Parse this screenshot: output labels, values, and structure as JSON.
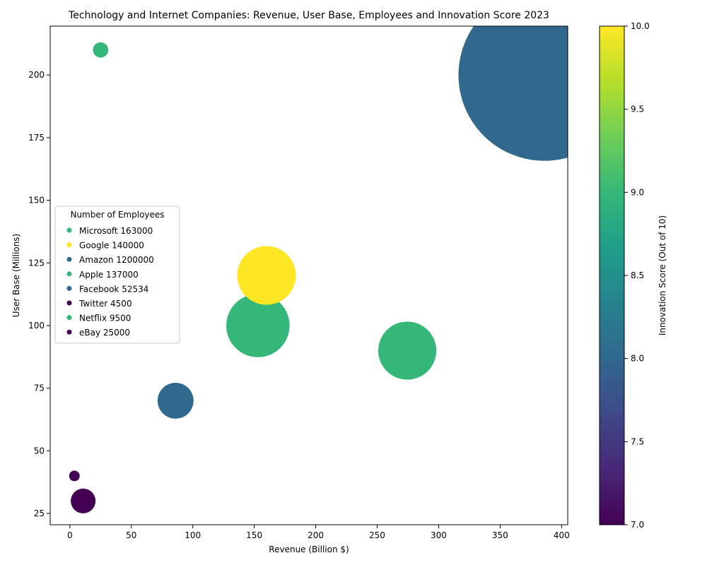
{
  "chart_data": {
    "type": "scatter",
    "title": "Technology and Internet Companies: Revenue, User Base, Employees and Innovation Score 2023",
    "xlabel": "Revenue (Billion $)",
    "ylabel": "User Base (Millions)",
    "xlim": [
      -16,
      405
    ],
    "ylim": [
      20.5,
      219.5
    ],
    "xticks": [
      0,
      50,
      100,
      150,
      200,
      250,
      300,
      350,
      400
    ],
    "yticks": [
      25,
      50,
      75,
      100,
      125,
      150,
      175,
      200
    ],
    "colorbar": {
      "label": "Innovation Score (Out of 10)",
      "min": 7.0,
      "max": 10.0,
      "ticks": [
        "7.0",
        "7.5",
        "8.0",
        "8.5",
        "9.0",
        "9.5",
        "10.0"
      ],
      "colormap": "viridis"
    },
    "legend": {
      "title": "Number of Employees",
      "placement": "center-left",
      "entries": [
        "Microsoft 163000",
        "Google 140000",
        "Amazon 1200000",
        "Apple 137000",
        "Facebook 52534",
        "Twitter 4500",
        "Netflix 9500",
        "eBay 25000"
      ]
    },
    "points": [
      {
        "company": "Microsoft",
        "revenue": 153,
        "users": 100,
        "employees": 163000,
        "innovation": 9
      },
      {
        "company": "Google",
        "revenue": 160,
        "users": 120,
        "employees": 140000,
        "innovation": 10
      },
      {
        "company": "Amazon",
        "revenue": 386,
        "users": 200,
        "employees": 1200000,
        "innovation": 8
      },
      {
        "company": "Apple",
        "revenue": 274.5,
        "users": 90,
        "employees": 137000,
        "innovation": 9
      },
      {
        "company": "Facebook",
        "revenue": 86,
        "users": 70,
        "employees": 52534,
        "innovation": 8
      },
      {
        "company": "Twitter",
        "revenue": 3.7,
        "users": 40,
        "employees": 4500,
        "innovation": 7
      },
      {
        "company": "Netflix",
        "revenue": 25,
        "users": 210,
        "employees": 9500,
        "innovation": 9
      },
      {
        "company": "eBay",
        "revenue": 10.8,
        "users": 30,
        "employees": 25000,
        "innovation": 7
      }
    ]
  }
}
